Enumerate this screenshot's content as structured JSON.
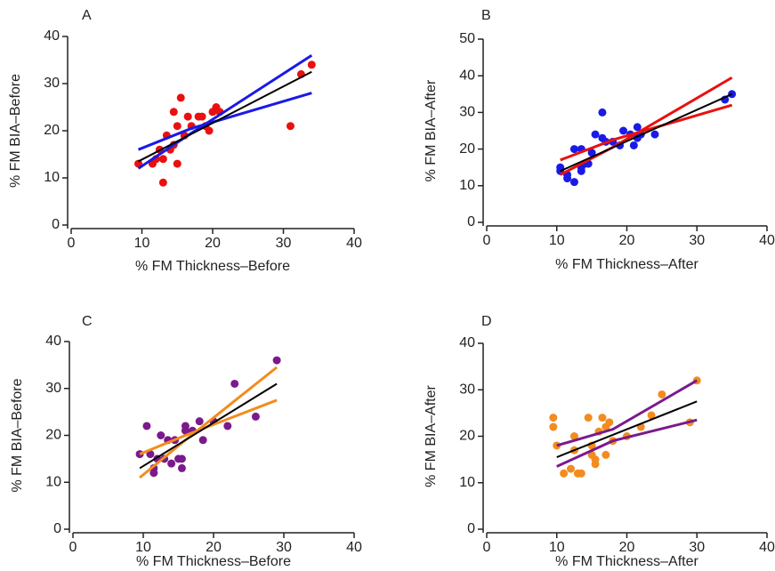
{
  "chart_data": [
    {
      "type": "scatter",
      "label": "A",
      "xlabel": "% FM Thickness–Before",
      "ylabel": "% FM BIA–Before",
      "xlim": [
        0,
        40
      ],
      "ylim": [
        0,
        40
      ],
      "xticks": [
        0,
        10,
        20,
        30,
        40
      ],
      "yticks": [
        0,
        10,
        20,
        30,
        40
      ],
      "points": {
        "color": "#e8110f",
        "x": [
          9.5,
          11.5,
          12,
          12.5,
          13,
          13,
          13.5,
          14,
          14.5,
          14.5,
          15,
          15,
          15.5,
          16,
          16.5,
          17,
          18,
          18.5,
          19,
          19.5,
          20,
          20.5,
          21,
          31,
          32.5,
          34
        ],
        "y": [
          13,
          13,
          14,
          16,
          14,
          9,
          19,
          16,
          17,
          24,
          13,
          21,
          27,
          19,
          23,
          21,
          23,
          23,
          21,
          20,
          24,
          25,
          24,
          21,
          32,
          34
        ]
      },
      "fit": {
        "color": "#000000",
        "x": [
          9.5,
          34
        ],
        "y": [
          13.5,
          32.5
        ]
      },
      "bands": {
        "color": "#1a1ae6",
        "upper": {
          "x": [
            9.5,
            17,
            34
          ],
          "y": [
            16,
            20.5,
            28
          ]
        },
        "lower": {
          "x": [
            9.5,
            17,
            34
          ],
          "y": [
            12,
            19.5,
            36
          ]
        }
      }
    },
    {
      "type": "scatter",
      "label": "B",
      "xlabel": "% FM Thickness–After",
      "ylabel": "% FM BIA–After",
      "xlim": [
        0,
        40
      ],
      "ylim": [
        0,
        50
      ],
      "xticks": [
        0,
        10,
        20,
        30,
        40
      ],
      "yticks": [
        0,
        10,
        20,
        30,
        40,
        50
      ],
      "points": {
        "color": "#1a1ae6",
        "x": [
          10.5,
          10.5,
          11.5,
          11.5,
          12.5,
          12.5,
          13.5,
          13.5,
          13.5,
          14,
          14.5,
          15,
          15.5,
          16.5,
          16.5,
          17,
          18,
          19,
          19.5,
          20.5,
          21,
          21.5,
          21.5,
          22,
          24,
          34,
          35
        ],
        "y": [
          14,
          15,
          13,
          12,
          11,
          20,
          14,
          15,
          20,
          16,
          16,
          19,
          24,
          23,
          30,
          22,
          22,
          21,
          25,
          24,
          21,
          23,
          26,
          24,
          24,
          33.5,
          35
        ]
      },
      "fit": {
        "color": "#000000",
        "x": [
          10.5,
          35
        ],
        "y": [
          14,
          35
        ]
      },
      "bands": {
        "color": "#e8110f",
        "upper": {
          "x": [
            10.5,
            18,
            35
          ],
          "y": [
            17,
            22.5,
            32
          ]
        },
        "lower": {
          "x": [
            10.5,
            18,
            35
          ],
          "y": [
            13,
            20.5,
            39.5
          ]
        }
      }
    },
    {
      "type": "scatter",
      "label": "C",
      "xlabel": "% FM Thickness–Before",
      "ylabel": "% FM BIA–Before",
      "xlim": [
        0,
        40
      ],
      "ylim": [
        0,
        40
      ],
      "xticks": [
        0,
        10,
        20,
        30,
        40
      ],
      "yticks": [
        0,
        10,
        20,
        30,
        40
      ],
      "points": {
        "color": "#7a1a8c",
        "x": [
          9.5,
          10.5,
          11,
          11.5,
          11.5,
          12,
          12.5,
          13,
          13.5,
          14,
          14.5,
          15,
          15.5,
          15.5,
          16,
          16,
          17,
          18,
          18.5,
          20,
          22,
          23,
          26,
          29
        ],
        "y": [
          16,
          22,
          16,
          12,
          13,
          15,
          20,
          15,
          19,
          14,
          19,
          15,
          13,
          15,
          21,
          22,
          21,
          23,
          19,
          23,
          22,
          31,
          24,
          36
        ]
      },
      "fit": {
        "color": "#000000",
        "x": [
          9.5,
          29
        ],
        "y": [
          13,
          31
        ]
      },
      "bands": {
        "color": "#f28c1e",
        "upper": {
          "x": [
            9.5,
            16,
            29
          ],
          "y": [
            16,
            20,
            27.5
          ]
        },
        "lower": {
          "x": [
            9.5,
            16,
            29
          ],
          "y": [
            11,
            19,
            34.5
          ]
        }
      }
    },
    {
      "type": "scatter",
      "label": "D",
      "xlabel": "% FM Thickness–After",
      "ylabel": "% FM BIA–After",
      "xlim": [
        0,
        40
      ],
      "ylim": [
        0,
        40
      ],
      "xticks": [
        0,
        10,
        20,
        30,
        40
      ],
      "yticks": [
        0,
        10,
        20,
        30,
        40
      ],
      "points": {
        "color": "#f28c1e",
        "x": [
          9.5,
          9.5,
          10,
          11,
          12,
          12.5,
          12.5,
          13,
          13.5,
          14.5,
          15,
          15,
          15.5,
          15.5,
          16,
          16.5,
          17,
          17,
          17.5,
          18,
          20,
          22,
          23.5,
          25,
          29,
          30
        ],
        "y": [
          22,
          24,
          18,
          12,
          13,
          17,
          20,
          12,
          12,
          24,
          16,
          18,
          15,
          14,
          21,
          24,
          16,
          22,
          23,
          19,
          20,
          22,
          24.5,
          29,
          23,
          32
        ]
      },
      "fit": {
        "color": "#000000",
        "x": [
          10,
          30
        ],
        "y": [
          15.5,
          27.5
        ]
      },
      "bands": {
        "color": "#7a1a8c",
        "upper": {
          "x": [
            10,
            18,
            30
          ],
          "y": [
            18,
            21.5,
            32
          ]
        },
        "lower": {
          "x": [
            10,
            18,
            30
          ],
          "y": [
            13.5,
            19,
            23.5
          ]
        }
      }
    }
  ]
}
